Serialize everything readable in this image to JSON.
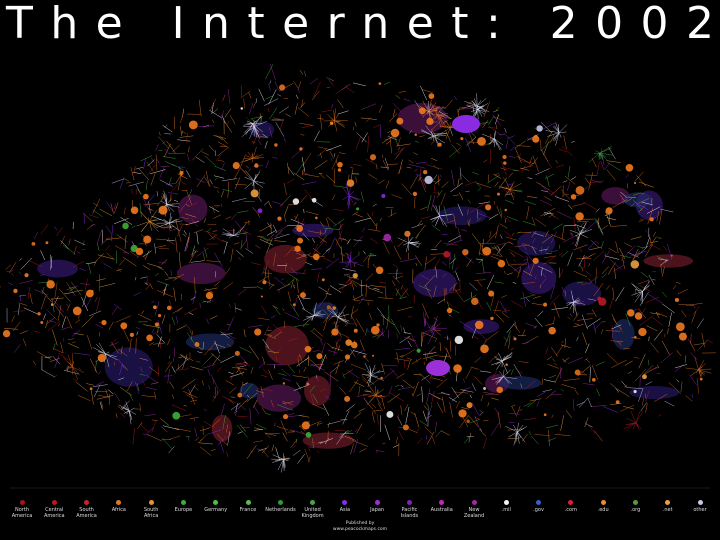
{
  "title": "The Internet: 2002",
  "legend": [
    {
      "label": "North America",
      "color": "#a3141c"
    },
    {
      "label": "Central America",
      "color": "#b81a22"
    },
    {
      "label": "South America",
      "color": "#c4262b"
    },
    {
      "label": "Africa",
      "color": "#e07a1e"
    },
    {
      "label": "South Africa",
      "color": "#e9952a"
    },
    {
      "label": "Europe",
      "color": "#3fae3a"
    },
    {
      "label": "Germany",
      "color": "#4cc043"
    },
    {
      "label": "France",
      "color": "#5bbf4a"
    },
    {
      "label": "Netherlands",
      "color": "#2f9c3a"
    },
    {
      "label": "United Kingdom",
      "color": "#46a84a"
    },
    {
      "label": "Asia",
      "color": "#8a2be2"
    },
    {
      "label": "Japan",
      "color": "#9b30d9"
    },
    {
      "label": "Pacific Islands",
      "color": "#7a24b8"
    },
    {
      "label": "Australia",
      "color": "#c22ab8"
    },
    {
      "label": "New Zealand",
      "color": "#a02aa8"
    },
    {
      "label": ".mil",
      "color": "#f4f4f4"
    },
    {
      "label": ".gov",
      "color": "#3a5fd0"
    },
    {
      "label": ".com",
      "color": "#d8203a"
    },
    {
      "label": ".edu",
      "color": "#f08a2c"
    },
    {
      "label": ".org",
      "color": "#5a9a3a"
    },
    {
      "label": ".net",
      "color": "#e8a040"
    },
    {
      "label": "other",
      "color": "#c8c8e8"
    }
  ],
  "publisher": {
    "heading": "Published by",
    "url": "www.peacockmaps.com"
  }
}
